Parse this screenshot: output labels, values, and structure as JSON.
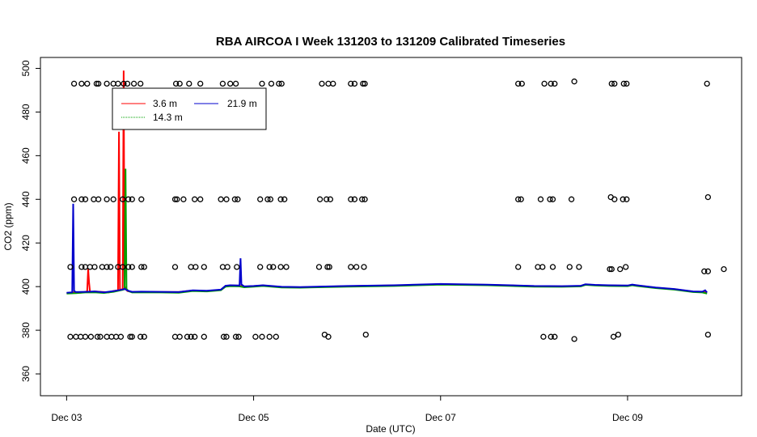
{
  "chart_data": {
    "type": "line",
    "title": "RBA AIRCOA I  Week 131203 to 131209  Calibrated Timeseries",
    "xlabel": "Date (UTC)",
    "ylabel": "CO2 (ppm)",
    "x_unit": "days since Dec 03 00:00 UTC",
    "x_ticks": [
      {
        "value": 0,
        "label": "Dec 03"
      },
      {
        "value": 2,
        "label": "Dec 05"
      },
      {
        "value": 4,
        "label": "Dec 07"
      },
      {
        "value": 6,
        "label": "Dec 09"
      }
    ],
    "y_ticks": [
      360,
      380,
      400,
      420,
      440,
      460,
      480,
      500
    ],
    "xlim": [
      -0.28,
      7.22
    ],
    "ylim": [
      350,
      505
    ],
    "legend": {
      "position": "top-left",
      "entries": [
        {
          "name": "3.6 m",
          "color": "#ff0000"
        },
        {
          "name": "14.3 m",
          "color": "#00a000"
        },
        {
          "name": "21.9 m",
          "color": "#0000cc"
        }
      ]
    },
    "series": [
      {
        "name": "3.6 m",
        "color": "#ff0000",
        "points": [
          [
            0,
            397
          ],
          [
            0.05,
            397.2
          ],
          [
            0.1,
            397.5
          ],
          [
            0.15,
            397.2
          ],
          [
            0.2,
            397.6
          ],
          [
            0.22,
            397.8
          ],
          [
            0.23,
            408
          ],
          [
            0.24,
            402
          ],
          [
            0.25,
            397.5
          ],
          [
            0.3,
            397.8
          ],
          [
            0.4,
            397.5
          ],
          [
            0.45,
            397.3
          ],
          [
            0.5,
            398
          ],
          [
            0.55,
            398.3
          ],
          [
            0.56,
            471
          ],
          [
            0.57,
            399
          ],
          [
            0.58,
            398.5
          ],
          [
            0.6,
            399
          ],
          [
            0.61,
            499
          ],
          [
            0.62,
            400
          ],
          [
            0.65,
            398
          ],
          [
            0.7,
            397.5
          ],
          [
            0.8,
            397.6
          ],
          [
            1.0,
            397.5
          ],
          [
            1.2,
            397.5
          ],
          [
            1.35,
            398.2
          ],
          [
            1.5,
            398
          ],
          [
            1.65,
            398.5
          ],
          [
            1.7,
            400.3
          ],
          [
            1.75,
            400.5
          ],
          [
            1.85,
            400.4
          ],
          [
            1.9,
            400
          ],
          [
            2.0,
            400.2
          ],
          [
            2.1,
            400.5
          ],
          [
            2.3,
            399.8
          ],
          [
            2.5,
            399.7
          ],
          [
            3.0,
            400.2
          ],
          [
            3.5,
            400.5
          ],
          [
            4.0,
            401.1
          ],
          [
            4.5,
            400.8
          ],
          [
            5.0,
            400.2
          ],
          [
            5.3,
            400.1
          ],
          [
            5.5,
            400.3
          ],
          [
            5.55,
            401
          ],
          [
            5.65,
            400.7
          ],
          [
            5.8,
            400.5
          ],
          [
            6.0,
            400.4
          ],
          [
            6.05,
            400.8
          ],
          [
            6.1,
            400.5
          ],
          [
            6.3,
            399.5
          ],
          [
            6.5,
            398.8
          ],
          [
            6.7,
            397.7
          ],
          [
            6.8,
            397.6
          ],
          [
            6.85,
            397.2
          ]
        ]
      },
      {
        "name": "14.3 m",
        "color": "#00a000",
        "points": [
          [
            0,
            396.8
          ],
          [
            0.1,
            397
          ],
          [
            0.2,
            397.3
          ],
          [
            0.3,
            397.4
          ],
          [
            0.4,
            397.1
          ],
          [
            0.5,
            397.6
          ],
          [
            0.6,
            398.5
          ],
          [
            0.62,
            398.8
          ],
          [
            0.63,
            454
          ],
          [
            0.64,
            399
          ],
          [
            0.66,
            398
          ],
          [
            0.7,
            397.3
          ],
          [
            0.8,
            397.4
          ],
          [
            1.0,
            397.3
          ],
          [
            1.2,
            397.2
          ],
          [
            1.35,
            398
          ],
          [
            1.5,
            397.8
          ],
          [
            1.65,
            398.3
          ],
          [
            1.7,
            400
          ],
          [
            1.75,
            400.2
          ],
          [
            1.85,
            400.1
          ],
          [
            1.9,
            399.7
          ],
          [
            2.0,
            400
          ],
          [
            2.1,
            400.3
          ],
          [
            2.3,
            399.6
          ],
          [
            2.5,
            399.5
          ],
          [
            3.0,
            400
          ],
          [
            3.5,
            400.3
          ],
          [
            4.0,
            400.9
          ],
          [
            4.5,
            400.6
          ],
          [
            5.0,
            400
          ],
          [
            5.3,
            399.9
          ],
          [
            5.5,
            400.1
          ],
          [
            5.55,
            400.8
          ],
          [
            5.65,
            400.5
          ],
          [
            5.8,
            400.3
          ],
          [
            6.0,
            400.2
          ],
          [
            6.05,
            400.6
          ],
          [
            6.1,
            400.3
          ],
          [
            6.3,
            399.3
          ],
          [
            6.5,
            398.6
          ],
          [
            6.7,
            397.5
          ],
          [
            6.8,
            397.3
          ],
          [
            6.85,
            396.8
          ]
        ]
      },
      {
        "name": "21.9 m",
        "color": "#0000cc",
        "points": [
          [
            0,
            397.2
          ],
          [
            0.06,
            397.4
          ],
          [
            0.07,
            438
          ],
          [
            0.08,
            398
          ],
          [
            0.1,
            397.5
          ],
          [
            0.2,
            397.6
          ],
          [
            0.3,
            397.8
          ],
          [
            0.4,
            397.4
          ],
          [
            0.5,
            397.9
          ],
          [
            0.6,
            398.7
          ],
          [
            0.62,
            399
          ],
          [
            0.65,
            398.2
          ],
          [
            0.7,
            397.6
          ],
          [
            0.8,
            397.7
          ],
          [
            1.0,
            397.6
          ],
          [
            1.2,
            397.5
          ],
          [
            1.35,
            398.3
          ],
          [
            1.5,
            398.1
          ],
          [
            1.65,
            398.6
          ],
          [
            1.7,
            400.4
          ],
          [
            1.75,
            400.6
          ],
          [
            1.85,
            400.5
          ],
          [
            1.86,
            413
          ],
          [
            1.87,
            401
          ],
          [
            1.9,
            400.1
          ],
          [
            2.0,
            400.3
          ],
          [
            2.1,
            400.6
          ],
          [
            2.3,
            399.9
          ],
          [
            2.5,
            399.8
          ],
          [
            3.0,
            400.3
          ],
          [
            3.5,
            400.6
          ],
          [
            4.0,
            401.2
          ],
          [
            4.5,
            400.9
          ],
          [
            5.0,
            400.3
          ],
          [
            5.3,
            400.2
          ],
          [
            5.5,
            400.4
          ],
          [
            5.55,
            401.1
          ],
          [
            5.65,
            400.8
          ],
          [
            5.8,
            400.6
          ],
          [
            6.0,
            400.5
          ],
          [
            6.05,
            400.9
          ],
          [
            6.1,
            400.6
          ],
          [
            6.3,
            399.6
          ],
          [
            6.5,
            398.9
          ],
          [
            6.7,
            397.8
          ],
          [
            6.8,
            397.7
          ],
          [
            6.83,
            398.3
          ],
          [
            6.85,
            397.3
          ]
        ]
      }
    ],
    "calibration_points": {
      "name": "calibration",
      "marker": "open-circle",
      "points": [
        [
          0.08,
          493
        ],
        [
          0.16,
          493
        ],
        [
          0.22,
          493
        ],
        [
          0.32,
          493
        ],
        [
          0.34,
          493
        ],
        [
          0.43,
          493
        ],
        [
          0.5,
          493
        ],
        [
          0.55,
          493
        ],
        [
          0.61,
          493
        ],
        [
          0.65,
          493
        ],
        [
          0.72,
          493
        ],
        [
          0.79,
          493
        ],
        [
          1.17,
          493
        ],
        [
          1.21,
          493
        ],
        [
          1.31,
          493
        ],
        [
          1.43,
          493
        ],
        [
          1.67,
          493
        ],
        [
          1.75,
          493
        ],
        [
          1.81,
          493
        ],
        [
          2.09,
          493
        ],
        [
          2.19,
          493
        ],
        [
          2.27,
          493
        ],
        [
          2.3,
          493
        ],
        [
          2.73,
          493
        ],
        [
          2.8,
          493
        ],
        [
          2.85,
          493
        ],
        [
          3.04,
          493
        ],
        [
          3.08,
          493
        ],
        [
          3.17,
          493
        ],
        [
          3.19,
          493
        ],
        [
          4.83,
          493
        ],
        [
          4.87,
          493
        ],
        [
          5.11,
          493
        ],
        [
          5.18,
          493
        ],
        [
          5.22,
          493
        ],
        [
          5.43,
          494
        ],
        [
          5.83,
          493
        ],
        [
          5.86,
          493
        ],
        [
          5.96,
          493
        ],
        [
          5.99,
          493
        ],
        [
          6.85,
          493
        ],
        [
          0.08,
          440
        ],
        [
          0.16,
          440
        ],
        [
          0.2,
          440
        ],
        [
          0.29,
          440
        ],
        [
          0.34,
          440
        ],
        [
          0.43,
          440
        ],
        [
          0.5,
          440
        ],
        [
          0.6,
          440
        ],
        [
          0.66,
          440
        ],
        [
          0.7,
          440
        ],
        [
          0.8,
          440
        ],
        [
          1.16,
          440
        ],
        [
          1.18,
          440
        ],
        [
          1.25,
          440
        ],
        [
          1.37,
          440
        ],
        [
          1.43,
          440
        ],
        [
          1.65,
          440
        ],
        [
          1.71,
          440
        ],
        [
          1.8,
          440
        ],
        [
          1.83,
          440
        ],
        [
          2.07,
          440
        ],
        [
          2.15,
          440
        ],
        [
          2.18,
          440
        ],
        [
          2.29,
          440
        ],
        [
          2.33,
          440
        ],
        [
          2.71,
          440
        ],
        [
          2.78,
          440
        ],
        [
          2.82,
          440
        ],
        [
          3.04,
          440
        ],
        [
          3.08,
          440
        ],
        [
          3.16,
          440
        ],
        [
          3.19,
          440
        ],
        [
          4.83,
          440
        ],
        [
          4.86,
          440
        ],
        [
          5.07,
          440
        ],
        [
          5.17,
          440
        ],
        [
          5.2,
          440
        ],
        [
          5.4,
          440
        ],
        [
          5.82,
          441
        ],
        [
          5.86,
          440
        ],
        [
          5.95,
          440
        ],
        [
          5.99,
          440
        ],
        [
          6.86,
          441
        ],
        [
          0.04,
          409
        ],
        [
          0.16,
          409
        ],
        [
          0.2,
          409
        ],
        [
          0.25,
          409
        ],
        [
          0.3,
          409
        ],
        [
          0.38,
          409
        ],
        [
          0.43,
          409
        ],
        [
          0.47,
          409
        ],
        [
          0.55,
          409
        ],
        [
          0.6,
          409
        ],
        [
          0.66,
          409
        ],
        [
          0.7,
          409
        ],
        [
          0.8,
          409
        ],
        [
          0.83,
          409
        ],
        [
          1.16,
          409
        ],
        [
          1.33,
          409
        ],
        [
          1.38,
          409
        ],
        [
          1.47,
          409
        ],
        [
          1.67,
          409
        ],
        [
          1.72,
          409
        ],
        [
          1.82,
          409
        ],
        [
          2.07,
          409
        ],
        [
          2.17,
          409
        ],
        [
          2.21,
          409
        ],
        [
          2.29,
          409
        ],
        [
          2.35,
          409
        ],
        [
          2.7,
          409
        ],
        [
          2.79,
          409
        ],
        [
          2.81,
          409
        ],
        [
          3.04,
          409
        ],
        [
          3.1,
          409
        ],
        [
          3.18,
          409
        ],
        [
          4.83,
          409
        ],
        [
          5.04,
          409
        ],
        [
          5.09,
          409
        ],
        [
          5.2,
          409
        ],
        [
          5.38,
          409
        ],
        [
          5.48,
          409
        ],
        [
          5.81,
          408
        ],
        [
          5.83,
          408
        ],
        [
          5.92,
          408
        ],
        [
          5.98,
          409
        ],
        [
          6.82,
          407
        ],
        [
          6.86,
          407
        ],
        [
          7.03,
          408
        ],
        [
          0.04,
          377
        ],
        [
          0.1,
          377
        ],
        [
          0.15,
          377
        ],
        [
          0.2,
          377
        ],
        [
          0.26,
          377
        ],
        [
          0.33,
          377
        ],
        [
          0.36,
          377
        ],
        [
          0.43,
          377
        ],
        [
          0.48,
          377
        ],
        [
          0.53,
          377
        ],
        [
          0.58,
          377
        ],
        [
          0.68,
          377
        ],
        [
          0.7,
          377
        ],
        [
          0.79,
          377
        ],
        [
          0.83,
          377
        ],
        [
          1.16,
          377
        ],
        [
          1.21,
          377
        ],
        [
          1.29,
          377
        ],
        [
          1.33,
          377
        ],
        [
          1.37,
          377
        ],
        [
          1.47,
          377
        ],
        [
          1.68,
          377
        ],
        [
          1.71,
          377
        ],
        [
          1.81,
          377
        ],
        [
          1.84,
          377
        ],
        [
          2.02,
          377
        ],
        [
          2.09,
          377
        ],
        [
          2.17,
          377
        ],
        [
          2.24,
          377
        ],
        [
          2.76,
          378
        ],
        [
          2.8,
          377
        ],
        [
          3.2,
          378
        ],
        [
          5.1,
          377
        ],
        [
          5.18,
          377
        ],
        [
          5.22,
          377
        ],
        [
          5.43,
          376
        ],
        [
          5.85,
          377
        ],
        [
          5.9,
          378
        ],
        [
          6.86,
          378
        ]
      ]
    }
  }
}
